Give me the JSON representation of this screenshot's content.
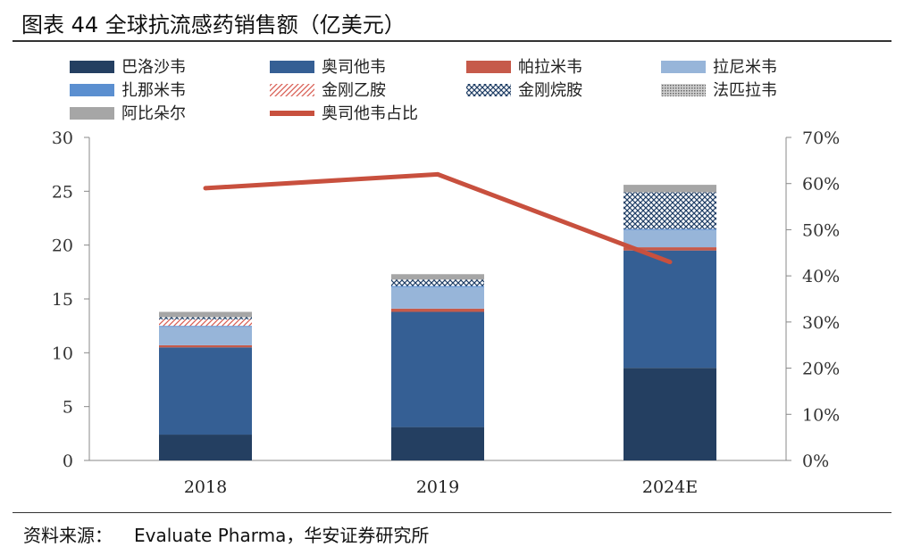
{
  "title": "图表 44 全球抗流感药销售额（亿美元）",
  "source_label": "资料来源：",
  "source_text": "Evaluate Pharma，华安证券研究所",
  "colors": {
    "baloxavir": "#243f61",
    "oseltamivir": "#355f94",
    "peramivir": "#c65a4a",
    "laninamivir": "#97b5d9",
    "zanamivir": "#5b8fd0",
    "amantadine": "#d95f55",
    "rimantadine": "#1f3e66",
    "favipiravir": "#8a8a8a",
    "arbidol": "#a6a6a6",
    "ratio_line": "#c8503e"
  },
  "chart_data": {
    "type": "bar",
    "stacked": true,
    "categories": [
      "2018",
      "2019",
      "2024E"
    ],
    "series": [
      {
        "name": "巴洛沙韦",
        "key": "baloxavir",
        "pattern": "solid",
        "values": [
          2.4,
          3.1,
          8.6
        ]
      },
      {
        "name": "奥司他韦",
        "key": "oseltamivir",
        "pattern": "solid",
        "values": [
          8.1,
          10.7,
          10.9
        ]
      },
      {
        "name": "帕拉米韦",
        "key": "peramivir",
        "pattern": "solid",
        "values": [
          0.2,
          0.3,
          0.3
        ]
      },
      {
        "name": "拉尼米韦",
        "key": "laninamivir",
        "pattern": "solid",
        "values": [
          1.7,
          2.0,
          1.6
        ]
      },
      {
        "name": "扎那米韦",
        "key": "zanamivir",
        "pattern": "solid",
        "values": [
          0.1,
          0.1,
          0.1
        ]
      },
      {
        "name": "金刚乙胺",
        "key": "amantadine",
        "pattern": "diagonal",
        "values": [
          0.6,
          0.0,
          0.0
        ]
      },
      {
        "name": "金刚烷胺",
        "key": "rimantadine",
        "pattern": "cross",
        "values": [
          0.2,
          0.6,
          3.4
        ]
      },
      {
        "name": "法匹拉韦",
        "key": "favipiravir",
        "pattern": "dots",
        "values": [
          0.0,
          0.0,
          0.0
        ]
      },
      {
        "name": "阿比朵尔",
        "key": "arbidol",
        "pattern": "solid",
        "values": [
          0.5,
          0.5,
          0.7
        ]
      }
    ],
    "line_series": {
      "name": "奥司他韦占比",
      "values": [
        59,
        62,
        43
      ],
      "axis": "right"
    },
    "ylim": [
      0,
      30
    ],
    "yticks": [
      0,
      5,
      10,
      15,
      20,
      25,
      30
    ],
    "y2lim": [
      0,
      70
    ],
    "y2ticks": [
      "0%",
      "10%",
      "20%",
      "30%",
      "40%",
      "50%",
      "60%",
      "70%"
    ],
    "grid": false,
    "legend": "top"
  }
}
